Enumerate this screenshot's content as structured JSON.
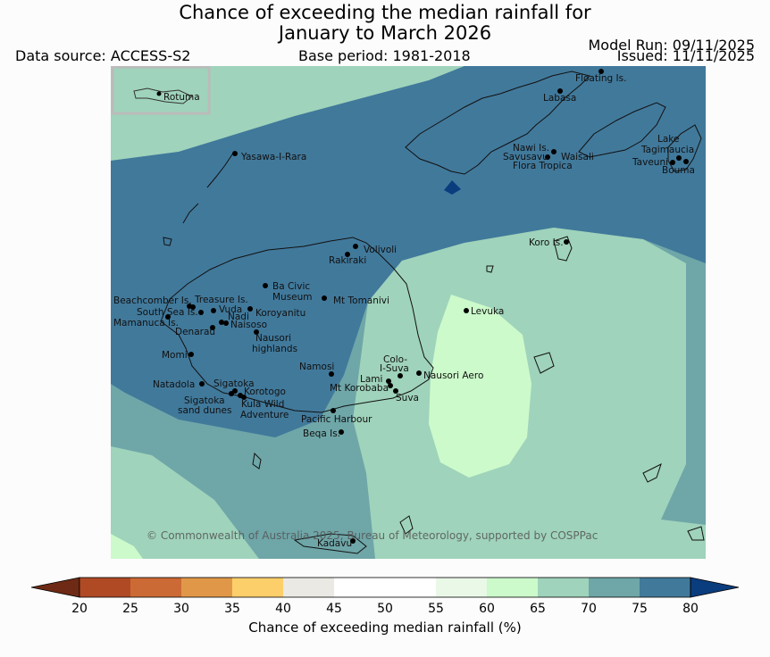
{
  "header": {
    "title_line1": "Chance of exceeding the median rainfall for",
    "title_line2": "January to March 2026",
    "data_source": "Data source: ACCESS-S2",
    "base_period": "Base period: 1981-2018",
    "model_run": "Model Run: 09/11/2025",
    "issued": "Issued: 11/11/2025"
  },
  "map": {
    "inset_label": "Rotuma",
    "copyright": "© Commonwealth of Australia 2025, Bureau of Meteorology, supported by COSPPac",
    "places": {
      "floating": "Floating Is.",
      "labasa": "Labasa",
      "nawi1": "Nawi Is.",
      "nawi2": "Savusavu",
      "waisali": "Waisali",
      "flora": "Flora Tropica",
      "lake1": "Lake",
      "lake2": "Tagimaucia",
      "taveuni": "Taveuni",
      "bouma": "Bouma",
      "yasawa": "Yasawa-I-Rara",
      "volivoli": "Volivoli",
      "rakiraki": "Rakiraki",
      "koro": "Koro Is.",
      "beachcomber": "Beachcomber Is.",
      "treasure": "Treasure Is.",
      "bacivic1": "Ba Civic",
      "bacivic2": "Museum",
      "tomanivi": "Mt Tomanivi",
      "southsea": "South Sea Is.",
      "vuda": "Vuda",
      "koroyanitu": "Koroyanitu",
      "nadi": "Nadi",
      "mamanuca": "Mamanuca Is.",
      "naisoso": "Naisoso",
      "denarau": "Denarau",
      "nausori1": "Nausori",
      "nausori2": "highlands",
      "levuka": "Levuka",
      "momi": "Momi",
      "namosi": "Namosi",
      "colo1": "Colo-",
      "colo2": "I-Suva",
      "natadola": "Natadola",
      "sigatoka": "Sigatoka",
      "lami": "Lami",
      "nausoriaero": "Nausori Aero",
      "korotogo": "Korotogo",
      "korobaba": "Mt Korobaba",
      "dunes1": "Sigatoka",
      "dunes2": "sand dunes",
      "kula1": "Kula Wild",
      "kula2": "Adventure",
      "suva": "Suva",
      "pacific": "Pacific Harbour",
      "beqa": "Beqa Is.",
      "kadavu": "Kadavu"
    }
  },
  "colorbar": {
    "label": "Chance of exceeding median rainfall (%)",
    "ticks": [
      "20",
      "25",
      "30",
      "35",
      "40",
      "45",
      "50",
      "55",
      "60",
      "65",
      "70",
      "75",
      "80"
    ],
    "colors": [
      "#6e2a14",
      "#b04a24",
      "#cc6a35",
      "#e09848",
      "#fdcf6b",
      "#ebe9e4",
      "#ffffff",
      "#ffffff",
      "#e9f8e7",
      "#ccfacb",
      "#9fd3bb",
      "#6fa6a8",
      "#41799b",
      "#0a3d7e"
    ]
  }
}
